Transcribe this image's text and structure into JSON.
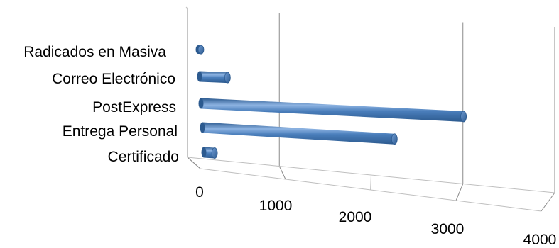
{
  "chart_data": {
    "type": "bar",
    "orientation": "horizontal",
    "style": "3d-cylinder",
    "title": "",
    "xlabel": "",
    "ylabel": "",
    "categories": [
      "Radicados en Masiva",
      "Correo Electrónico",
      "PostExpress",
      "Entrega Personal",
      "Certificado"
    ],
    "values": [
      30,
      350,
      3250,
      2350,
      130
    ],
    "xlim": [
      0,
      4000
    ],
    "x_ticks": [
      "0",
      "1000",
      "2000",
      "3000",
      "4000"
    ],
    "grid": true,
    "legend": "none",
    "bar_color": "#4a7ebb",
    "bar_highlight": "#8db3e2",
    "bar_shadow": "#2c5a8f"
  }
}
